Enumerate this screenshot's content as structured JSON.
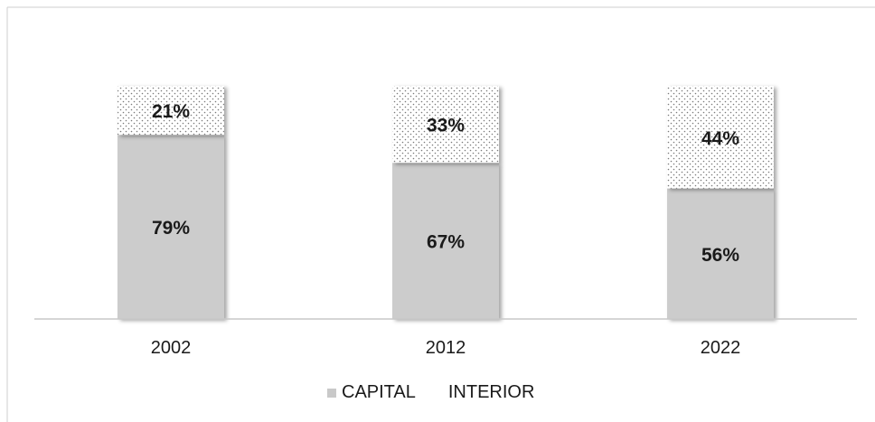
{
  "chart_data": {
    "type": "bar",
    "stacked": true,
    "categories": [
      "2002",
      "2012",
      "2022"
    ],
    "series": [
      {
        "name": "CAPITAL",
        "values": [
          79,
          67,
          56
        ],
        "labels": [
          "79%",
          "67%",
          "56%"
        ],
        "color": "#cccccc",
        "pattern": "solid"
      },
      {
        "name": "INTERIOR",
        "values": [
          21,
          33,
          44
        ],
        "labels": [
          "21%",
          "33%",
          "44%"
        ],
        "color": "#ffffff",
        "pattern": "dotted"
      }
    ],
    "ylim": [
      0,
      100
    ],
    "grid": false,
    "legend_position": "bottom",
    "title": "",
    "xlabel": "",
    "ylabel": ""
  }
}
